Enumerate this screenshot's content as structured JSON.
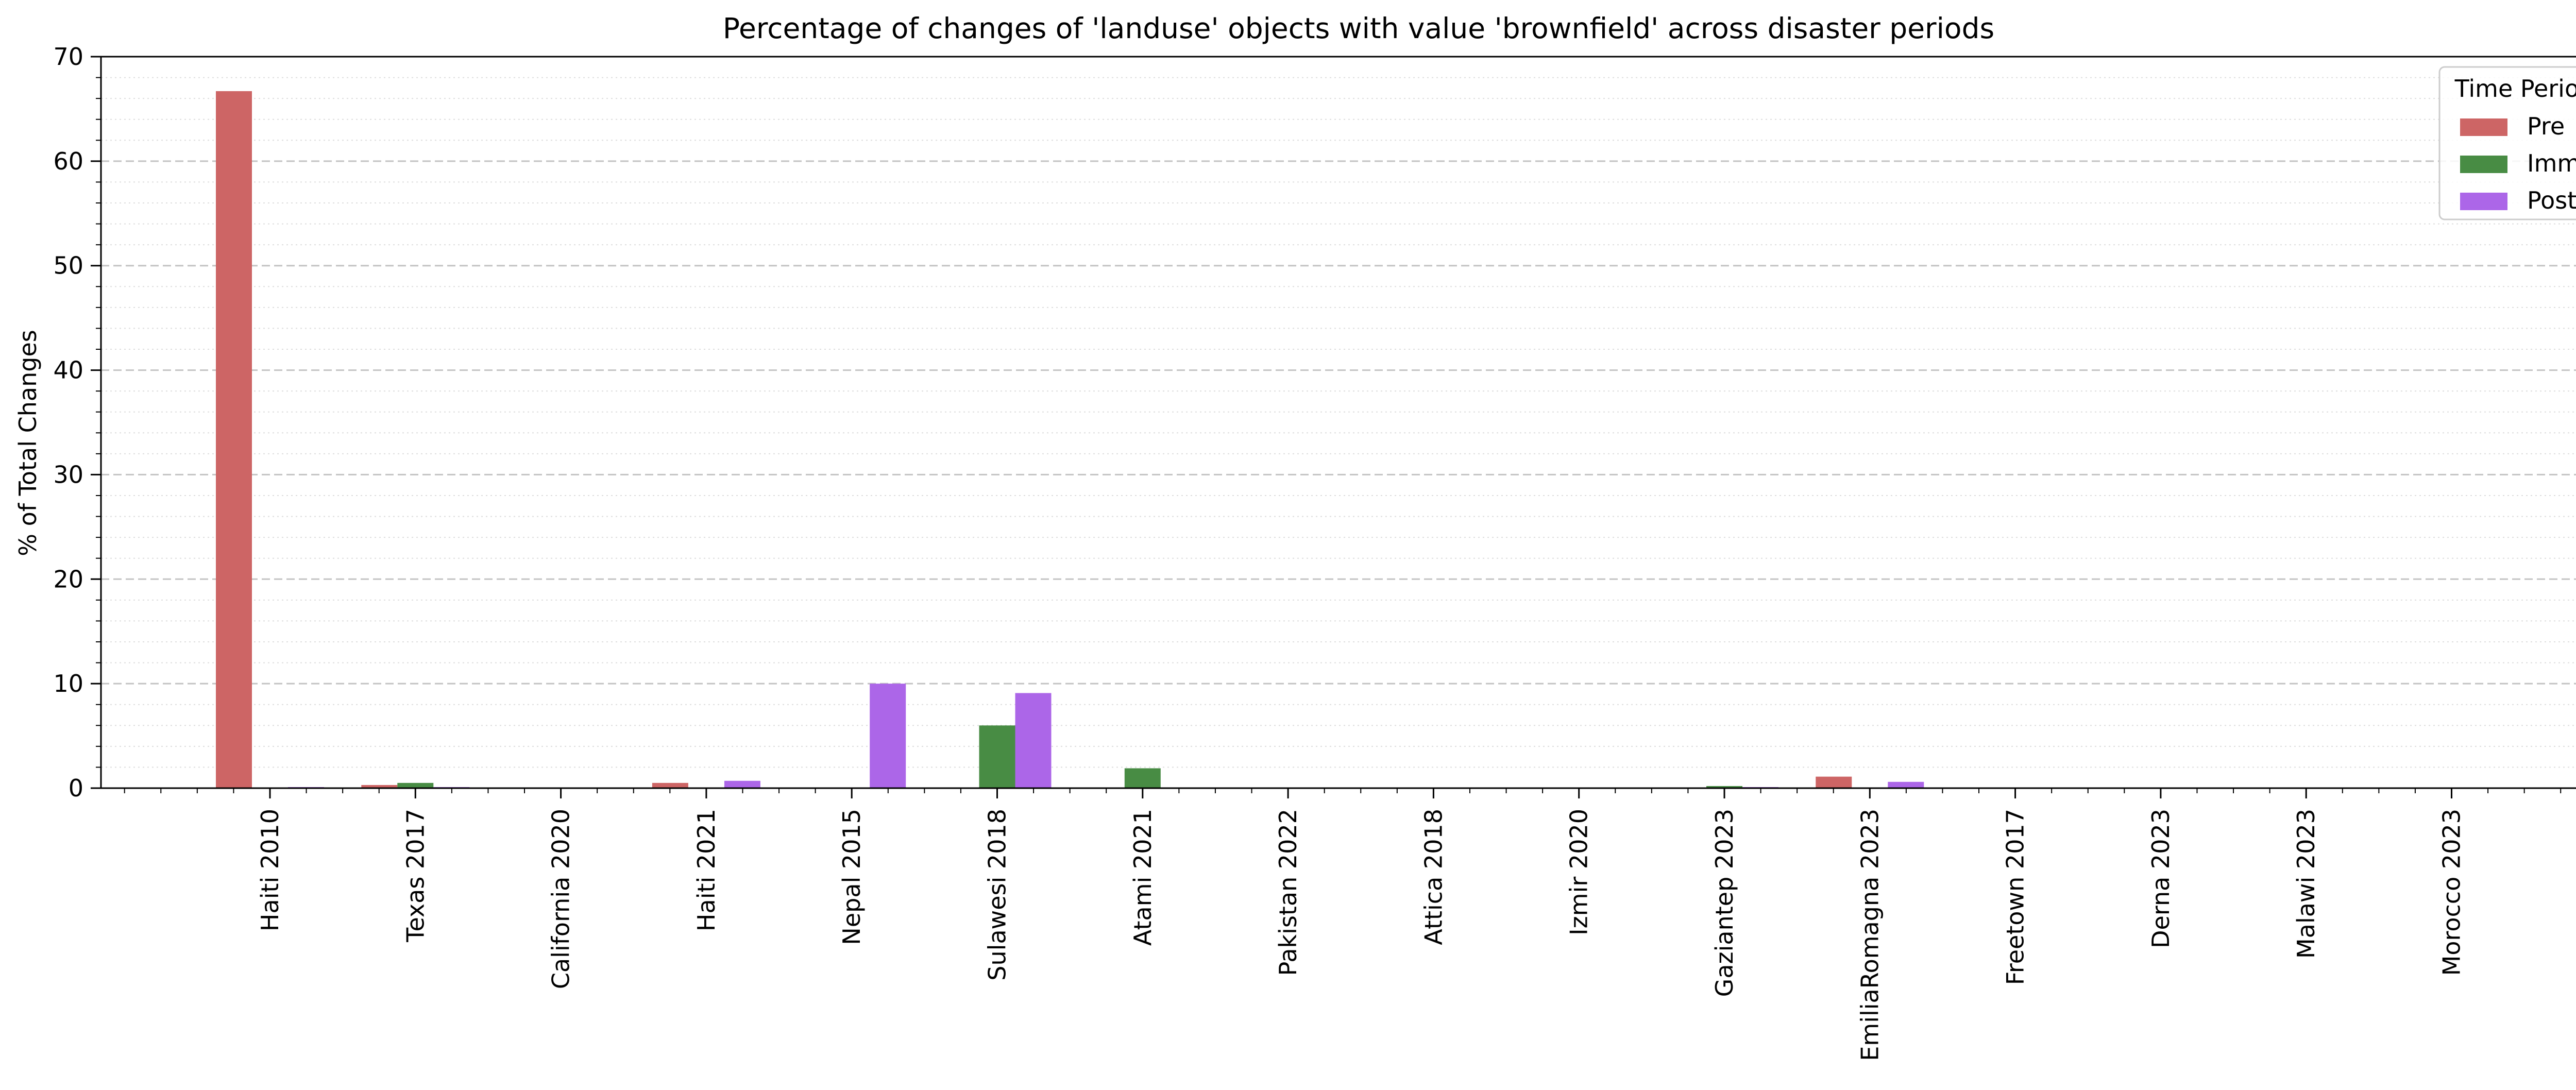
{
  "chart_data": {
    "type": "bar",
    "title": "Percentage of changes of 'landuse' objects with value 'brownfield' across disaster periods",
    "xlabel": "",
    "ylabel": "% of Total Changes",
    "ylim": [
      0,
      70
    ],
    "yticks": [
      0,
      10,
      20,
      30,
      40,
      50,
      60,
      70
    ],
    "grid": "y-major dashed, y-minor dotted",
    "legend": {
      "title": "Time Period",
      "placement": "top-right"
    },
    "categories": [
      "Haiti 2010",
      "Texas 2017",
      "California 2020",
      "Haiti 2021",
      "Nepal 2015",
      "Sulawesi 2018",
      "Atami 2021",
      "Pakistan 2022",
      "Attica 2018",
      "Izmir 2020",
      "Gaziantep 2023",
      "EmiliaRomagna 2023",
      "Freetown 2017",
      "Derna 2023",
      "Malawi 2023",
      "Morocco 2023"
    ],
    "series": [
      {
        "name": "Pre",
        "color": "#cd6565",
        "values": [
          66.7,
          0.3,
          0,
          0.5,
          0,
          0,
          0,
          0,
          0,
          0,
          0,
          1.1,
          0,
          0,
          0,
          0
        ]
      },
      {
        "name": "Imm",
        "color": "#488c44",
        "values": [
          0,
          0.5,
          0,
          0,
          0,
          6.0,
          1.9,
          0,
          0,
          0,
          0.2,
          0,
          0,
          0,
          0,
          0
        ]
      },
      {
        "name": "Post",
        "color": "#ac66e8",
        "values": [
          0.1,
          0.1,
          0,
          0.7,
          10.0,
          9.1,
          0,
          0,
          0,
          0,
          0.1,
          0.6,
          0,
          0,
          0,
          0
        ]
      }
    ]
  }
}
